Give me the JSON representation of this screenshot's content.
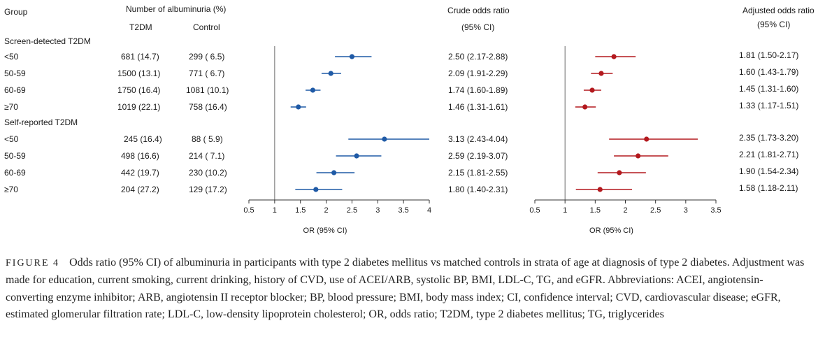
{
  "headers": {
    "group": "Group",
    "albuminuria": "Number of albuminuria (%)",
    "t2dm": "T2DM",
    "control": "Control",
    "crude_line1": "Crude odds ratio",
    "crude_line2": "(95% CI)",
    "adj_line1": "Adjusted odds ratio",
    "adj_line2": "(95% CI)"
  },
  "groups": [
    {
      "label": "Screen-detected T2DM",
      "rows": [
        {
          "age": "<50",
          "t2dm": "681 (14.7)",
          "control": "299 ( 6.5)",
          "crude_text": "2.50 (2.17-2.88)",
          "adj_text": "1.81 (1.50-2.17)"
        },
        {
          "age": "50-59",
          "t2dm": "1500 (13.1)",
          "control": "771 ( 6.7)",
          "crude_text": "2.09 (1.91-2.29)",
          "adj_text": "1.60 (1.43-1.79)"
        },
        {
          "age": "60-69",
          "t2dm": "1750 (16.4)",
          "control": "1081 (10.1)",
          "crude_text": "1.74 (1.60-1.89)",
          "adj_text": "1.45 (1.31-1.60)"
        },
        {
          "age": "≥70",
          "t2dm": "1019 (22.1)",
          "control": "758 (16.4)",
          "crude_text": "1.46 (1.31-1.61)",
          "adj_text": "1.33 (1.17-1.51)"
        }
      ]
    },
    {
      "label": "Self-reported T2DM",
      "rows": [
        {
          "age": "<50",
          "t2dm": "245 (16.4)",
          "control": "88 ( 5.9)",
          "crude_text": "3.13 (2.43-4.04)",
          "adj_text": "2.35 (1.73-3.20)"
        },
        {
          "age": "50-59",
          "t2dm": "498 (16.6)",
          "control": "214 ( 7.1)",
          "crude_text": "2.59 (2.19-3.07)",
          "adj_text": "2.21 (1.81-2.71)"
        },
        {
          "age": "60-69",
          "t2dm": "442 (19.7)",
          "control": "230 (10.2)",
          "crude_text": "2.15 (1.81-2.55)",
          "adj_text": "1.90 (1.54-2.34)"
        },
        {
          "age": "≥70",
          "t2dm": "204 (27.2)",
          "control": "129 (17.2)",
          "crude_text": "1.80 (1.40-2.31)",
          "adj_text": "1.58 (1.18-2.11)"
        }
      ]
    }
  ],
  "chart_data": [
    {
      "type": "scatter",
      "title": "Crude odds ratio (95% CI)",
      "xlabel": "OR (95% CI)",
      "xlim": [
        0.5,
        4
      ],
      "xticks": [
        "0.5",
        "1",
        "1.5",
        "2",
        "2.5",
        "3",
        "3.5",
        "4"
      ],
      "reference_line": 1,
      "color": "#1f5aa6",
      "categories": [
        "<50",
        "50-59",
        "60-69",
        "≥70",
        "<50",
        "50-59",
        "60-69",
        "≥70"
      ],
      "points": [
        {
          "or": 2.5,
          "lo": 2.17,
          "hi": 2.88
        },
        {
          "or": 2.09,
          "lo": 1.91,
          "hi": 2.29
        },
        {
          "or": 1.74,
          "lo": 1.6,
          "hi": 1.89
        },
        {
          "or": 1.46,
          "lo": 1.31,
          "hi": 1.61
        },
        {
          "or": 3.13,
          "lo": 2.43,
          "hi": 4.04
        },
        {
          "or": 2.59,
          "lo": 2.19,
          "hi": 3.07
        },
        {
          "or": 2.15,
          "lo": 1.81,
          "hi": 2.55
        },
        {
          "or": 1.8,
          "lo": 1.4,
          "hi": 2.31
        }
      ]
    },
    {
      "type": "scatter",
      "title": "Adjusted odds ratio (95% CI)",
      "xlabel": "OR (95% CI)",
      "xlim": [
        0.5,
        3.5
      ],
      "xticks": [
        "0.5",
        "1",
        "1.5",
        "2",
        "2.5",
        "3",
        "3.5"
      ],
      "reference_line": 1,
      "color": "#b3191e",
      "categories": [
        "<50",
        "50-59",
        "60-69",
        "≥70",
        "<50",
        "50-59",
        "60-69",
        "≥70"
      ],
      "points": [
        {
          "or": 1.81,
          "lo": 1.5,
          "hi": 2.17
        },
        {
          "or": 1.6,
          "lo": 1.43,
          "hi": 1.79
        },
        {
          "or": 1.45,
          "lo": 1.31,
          "hi": 1.6
        },
        {
          "or": 1.33,
          "lo": 1.17,
          "hi": 1.51
        },
        {
          "or": 2.35,
          "lo": 1.73,
          "hi": 3.2
        },
        {
          "or": 2.21,
          "lo": 1.81,
          "hi": 2.71
        },
        {
          "or": 1.9,
          "lo": 1.54,
          "hi": 2.34
        },
        {
          "or": 1.58,
          "lo": 1.18,
          "hi": 2.11
        }
      ]
    }
  ],
  "caption": {
    "label": "FIGURE 4",
    "text": "Odds ratio (95% CI) of albuminuria in participants with type 2 diabetes mellitus vs matched controls in strata of age at diagnosis of type 2 diabetes. Adjustment was made for education, current smoking, current drinking, history of CVD, use of ACEI/ARB, systolic BP, BMI, LDL-C, TG, and eGFR. Abbreviations: ACEI, angiotensin-converting enzyme inhibitor; ARB, angiotensin II receptor blocker; BP, blood pressure; BMI, body mass index; CI, confidence interval; CVD, cardiovascular disease; eGFR, estimated glomerular filtration rate; LDL-C, low-density lipoprotein cholesterol; OR, odds ratio; T2DM, type 2 diabetes mellitus; TG, triglycerides"
  }
}
